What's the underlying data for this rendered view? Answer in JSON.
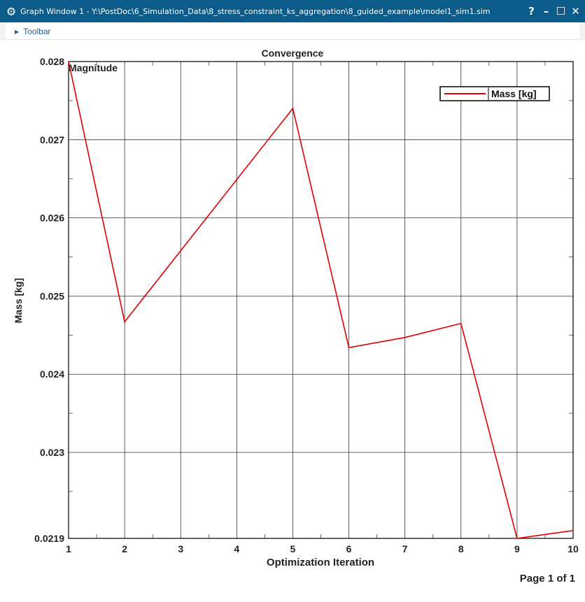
{
  "window": {
    "title": "Graph Window 1 - Y:\\PostDoc\\6_Simulation_Data\\8_stress_constraint_ks_aggregation\\8_guided_example\\model1_sim1.sim",
    "help_label": "?",
    "minimize_label": "–",
    "maximize_label": "☐",
    "close_label": "✕"
  },
  "toolbar": {
    "label": "Toolbar"
  },
  "page_indicator": "Page 1 of 1",
  "colors": {
    "titlebar": "#0b5c8a",
    "series": "#e00000"
  },
  "chart_data": {
    "type": "line",
    "title": "Convergence",
    "subtitle": "Magnitude",
    "xlabel": "Optimization Iteration",
    "ylabel": "Mass [kg]",
    "xlim": [
      1,
      10
    ],
    "ylim": [
      0.0219,
      0.028
    ],
    "x_ticks": [
      "1",
      "2",
      "3",
      "4",
      "5",
      "6",
      "7",
      "8",
      "9",
      "10"
    ],
    "y_ticks": [
      "0.028",
      "0.027",
      "0.026",
      "0.025",
      "0.024",
      "0.023",
      "0.0219"
    ],
    "grid": true,
    "legend_position": "top-right",
    "series": [
      {
        "name": "Mass [kg]",
        "color": "#e00000",
        "x": [
          1,
          2,
          5,
          6,
          7,
          8,
          9,
          10
        ],
        "y": [
          0.028,
          0.02467,
          0.0274,
          0.02434,
          0.02447,
          0.02465,
          0.0219,
          0.022
        ]
      }
    ]
  }
}
